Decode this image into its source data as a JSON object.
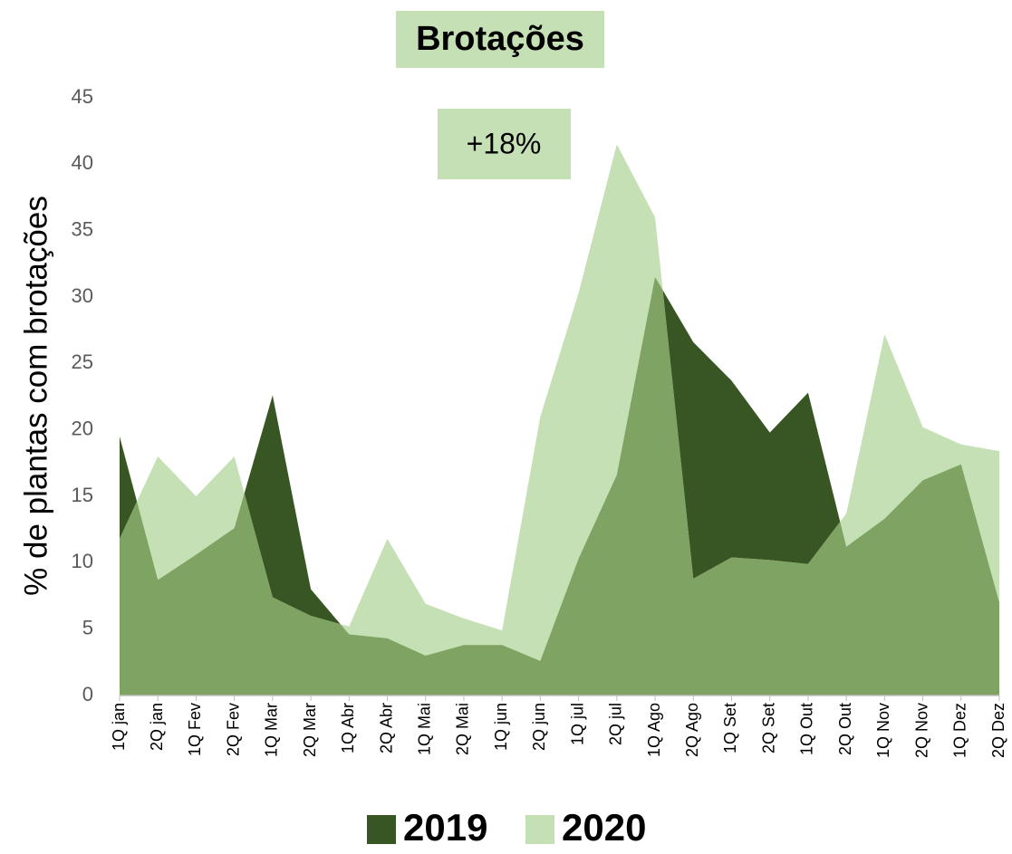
{
  "chart_data": {
    "type": "area",
    "title": "Brotações",
    "y_label": "% de plantas com brotações",
    "annotation": "+18%",
    "categories": [
      "1Q jan",
      "2Q jan",
      "1Q Fev",
      "2Q Fev",
      "1Q Mar",
      "2Q Mar",
      "1Q Abr",
      "2Q Abr",
      "1Q Mai",
      "2Q Mai",
      "1Q jun",
      "2Q jun",
      "1Q jul",
      "2Q jul",
      "1Q Ago",
      "2Q Ago",
      "1Q Set",
      "2Q Set",
      "1Q Out",
      "2Q Out",
      "1Q Nov",
      "2Q Nov",
      "1Q Dez",
      "2Q Dez"
    ],
    "series": [
      {
        "name": "2019",
        "color": "#375623",
        "values": [
          19.5,
          8.7,
          10.6,
          12.6,
          22.6,
          8,
          4.6,
          4.3,
          3.0,
          3.8,
          3.8,
          2.6,
          10.3,
          16.6,
          31.5,
          26.6,
          23.7,
          19.8,
          22.8,
          11.2,
          13.3,
          16.2,
          17.4,
          7
        ]
      },
      {
        "name": "2020",
        "color": "#c5e0b4",
        "values": [
          11.8,
          18,
          15,
          18,
          7.4,
          6,
          5.2,
          11.8,
          6.9,
          5.8,
          4.9,
          21,
          30.3,
          41.5,
          36,
          8.8,
          10.4,
          10.2,
          9.9,
          13.7,
          27.2,
          20.2,
          18.9,
          18.4
        ]
      }
    ],
    "ylim": [
      0,
      45
    ],
    "yticks": [
      0,
      5,
      10,
      15,
      20,
      25,
      30,
      35,
      40,
      45
    ],
    "legend": "bottom"
  }
}
